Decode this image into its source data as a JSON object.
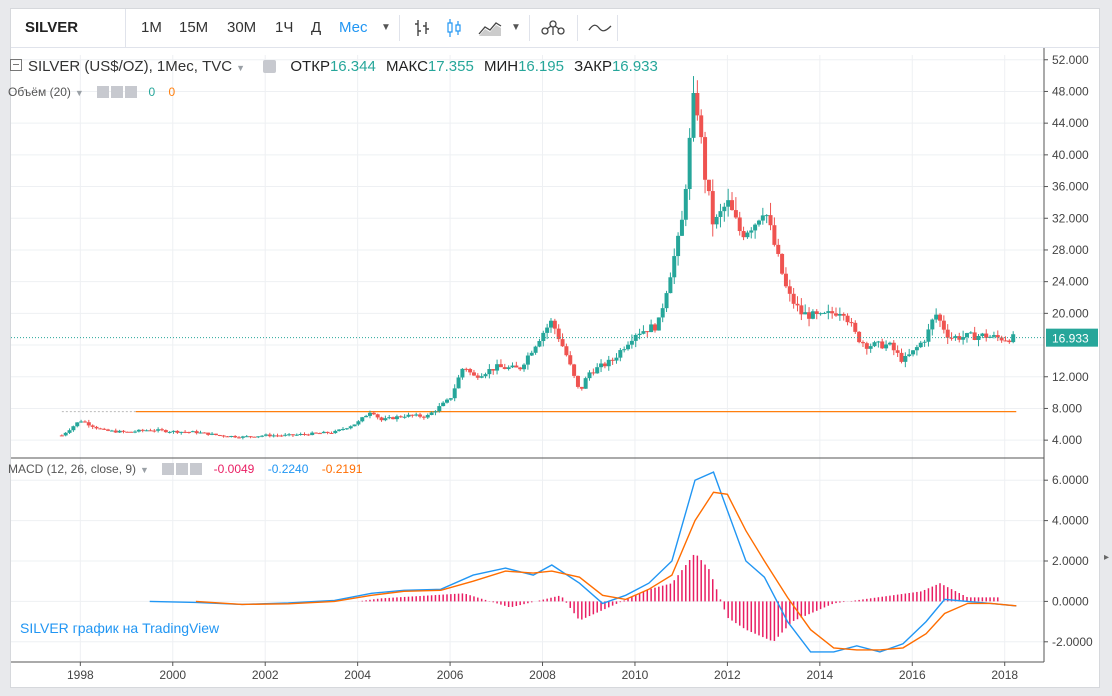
{
  "toolbar": {
    "symbol": "SILVER",
    "intervals": [
      "1М",
      "15М",
      "30М",
      "1Ч",
      "Д",
      "Мес"
    ],
    "active_interval": "Мес",
    "icons": [
      "bar-chart-icon",
      "candlestick-icon",
      "area-chart-icon",
      "chevron-down-icon",
      "indicators-icon",
      "compare-line-icon"
    ]
  },
  "legend": {
    "title": "SILVER (US$/OZ), 1Мес, TVC",
    "open_label": "ОТКР",
    "open": "16.344",
    "high_label": "МАКС",
    "high": "17.355",
    "low_label": "МИН",
    "low": "16.195",
    "close_label": "ЗАКР",
    "close": "16.933",
    "volume_label": "Объём (20)",
    "volume_v1": "0",
    "volume_v2": "0",
    "macd_label": "MACD (12, 26, close, 9)",
    "macd_hist": "-0.0049",
    "macd_macd": "-0.2240",
    "macd_signal": "-0.2191"
  },
  "attribution": "SILVER график на TradingView",
  "colors": {
    "up": "#26a69a",
    "down": "#ef5350",
    "macd": "#2196f3",
    "signal": "#ff6d00",
    "hist": "#e91e63",
    "volume_ma": "#ff7f0e",
    "price_line": "#26a69a"
  },
  "chart_data": [
    {
      "type": "candlestick",
      "title": "SILVER (US$/OZ), 1Мес, TVC",
      "x_ticks": [
        "1998",
        "2000",
        "2002",
        "2004",
        "2006",
        "2008",
        "2010",
        "2012",
        "2014",
        "2016",
        "2018"
      ],
      "y_ticks": [
        "4.000",
        "8.000",
        "12.000",
        "16.000",
        "20.000",
        "24.000",
        "28.000",
        "32.000",
        "36.000",
        "40.000",
        "44.000",
        "48.000",
        "52.000"
      ],
      "ylim": [
        2,
        52.6
      ],
      "last_price_label": "16.933",
      "volume_ma_level": 7.6,
      "series": [
        {
          "name": "SILVER",
          "x": [
            1997.6,
            1998.0,
            1998.5,
            1999.0,
            1999.5,
            2000.0,
            2000.5,
            2001.0,
            2001.5,
            2002.0,
            2002.5,
            2003.0,
            2003.5,
            2004.0,
            2004.3,
            2004.5,
            2005.0,
            2005.5,
            2006.0,
            2006.3,
            2006.5,
            2007.0,
            2007.5,
            2008.0,
            2008.2,
            2008.5,
            2008.8,
            2009.0,
            2009.5,
            2010.0,
            2010.5,
            2010.8,
            2011.0,
            2011.3,
            2011.5,
            2011.7,
            2012.0,
            2012.3,
            2012.6,
            2012.8,
            2013.0,
            2013.3,
            2013.6,
            2014.0,
            2014.5,
            2014.8,
            2015.0,
            2015.5,
            2015.8,
            2016.0,
            2016.3,
            2016.5,
            2016.8,
            2017.0,
            2017.5,
            2018.0,
            2018.25
          ],
          "close": [
            4.6,
            6.5,
            5.2,
            5.0,
            5.3,
            5.1,
            5.0,
            4.6,
            4.4,
            4.6,
            4.6,
            4.8,
            5.0,
            6.2,
            7.8,
            6.5,
            7.1,
            7.0,
            9.2,
            13.5,
            12.0,
            13.2,
            13.0,
            17.5,
            19.0,
            15.0,
            10.0,
            12.5,
            14.0,
            17.5,
            18.5,
            26.0,
            30.5,
            48.5,
            38.0,
            31.0,
            34.0,
            30.0,
            31.5,
            33.5,
            29.0,
            22.5,
            20.0,
            19.5,
            20.5,
            17.0,
            16.0,
            16.0,
            14.0,
            15.0,
            17.0,
            20.0,
            17.0,
            17.0,
            17.2,
            16.8,
            16.933
          ]
        }
      ]
    },
    {
      "type": "line",
      "title": "MACD (12, 26, close, 9)",
      "y_ticks": [
        "-2.0000",
        "0.0000",
        "2.0000",
        "4.0000",
        "6.0000"
      ],
      "ylim": [
        -3.0,
        7.0
      ],
      "x": [
        1999.5,
        2000.5,
        2001.5,
        2002.5,
        2003.5,
        2004.3,
        2005.0,
        2005.8,
        2006.5,
        2007.2,
        2007.8,
        2008.2,
        2008.8,
        2009.3,
        2009.8,
        2010.3,
        2010.8,
        2011.3,
        2011.7,
        2012.0,
        2012.4,
        2012.8,
        2013.3,
        2013.8,
        2014.3,
        2014.8,
        2015.3,
        2015.8,
        2016.3,
        2016.7,
        2017.2,
        2017.7,
        2018.25
      ],
      "series": [
        {
          "name": "MACD",
          "values": [
            0.0,
            -0.05,
            -0.15,
            -0.08,
            0.05,
            0.4,
            0.55,
            0.6,
            1.3,
            1.65,
            1.3,
            1.8,
            0.9,
            -0.1,
            0.3,
            0.9,
            2.0,
            6.0,
            6.4,
            4.5,
            2.0,
            1.2,
            -1.0,
            -2.5,
            -2.5,
            -2.2,
            -2.5,
            -2.1,
            -1.0,
            0.1,
            0.0,
            -0.1,
            -0.224
          ]
        },
        {
          "name": "Signal",
          "values": [
            null,
            0.0,
            -0.15,
            -0.12,
            0.0,
            0.3,
            0.5,
            0.55,
            1.0,
            1.5,
            1.4,
            1.5,
            1.2,
            0.3,
            0.1,
            0.6,
            1.3,
            4.0,
            5.4,
            5.3,
            3.5,
            2.0,
            0.2,
            -1.4,
            -2.3,
            -2.4,
            -2.4,
            -2.3,
            -1.6,
            -0.6,
            -0.1,
            -0.1,
            -0.2191
          ]
        }
      ],
      "histogram": {
        "name": "Histogram",
        "x": [
          2004.5,
          2006.3,
          2007.3,
          2008.4,
          2008.8,
          2010.3,
          2010.8,
          2011.3,
          2011.6,
          2012.0,
          2012.4,
          2013.0,
          2013.4,
          2014.3,
          2016.2,
          2016.6,
          2017.2
        ],
        "values": [
          0.15,
          0.4,
          -0.3,
          0.3,
          -0.95,
          0.6,
          0.9,
          2.4,
          1.6,
          -0.8,
          -1.4,
          -2.0,
          -1.0,
          -0.1,
          0.5,
          0.9,
          0.2
        ]
      }
    }
  ]
}
